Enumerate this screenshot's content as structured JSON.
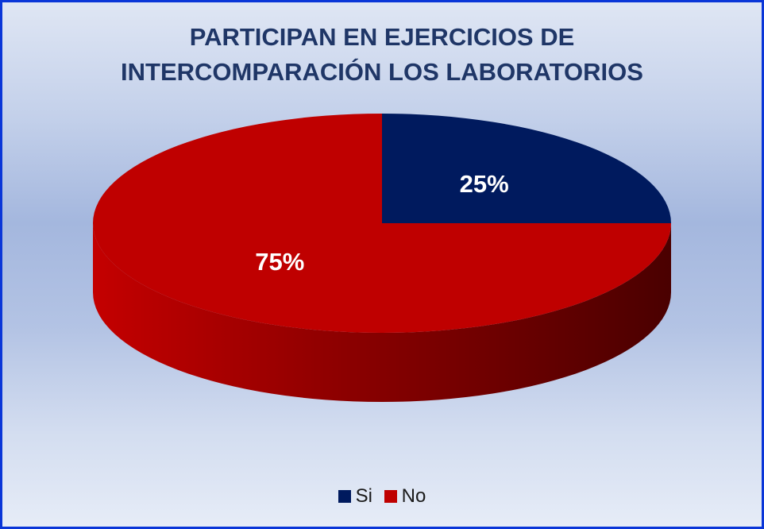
{
  "chart_data": {
    "type": "pie",
    "title": [
      "PARTICIPAN EN EJERCICIOS DE",
      "INTERCOMPARACIÓN LOS LABORATORIOS"
    ],
    "categories": [
      "Si",
      "No"
    ],
    "values": [
      25,
      75
    ],
    "labels": [
      "25%",
      "75%"
    ],
    "colors": [
      "#001a5e",
      "#bf0000"
    ],
    "legend_position": "bottom",
    "three_d": true
  }
}
